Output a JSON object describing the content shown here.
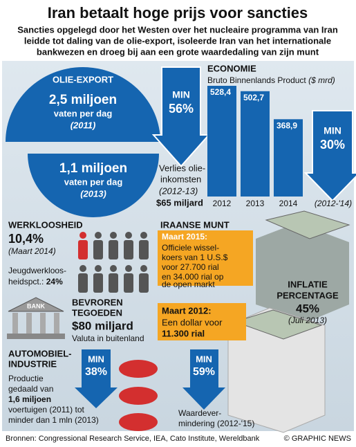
{
  "title": "Iran betaalt hoge prijs voor sancties",
  "subtitle": [
    "Sancties opgelegd door het Westen over het nucleaire programma van Iran",
    "leidde tot daling van de olie-export, isoleerde Iran van het internationale",
    "bankwezen en droeg bij aan een grote waardedaling van zijn munt"
  ],
  "oil": {
    "label": "OLIE-EXPORT",
    "before": "2,5 miljoen",
    "before_unit": "vaten per dag",
    "before_year": "(2011)",
    "after": "1,1 miljoen",
    "after_unit": "vaten per dag",
    "after_year": "(2013)",
    "arrow_label": "MIN",
    "arrow_value": "56%",
    "loss": [
      "Verlies olie-",
      "inkomsten"
    ],
    "loss_period": "(2012-13)",
    "loss_value": "$65 miljard"
  },
  "chart_data": {
    "type": "bar",
    "title": "ECONOMIE",
    "subtitle": "Bruto Binnenlands Product",
    "unit": "($ mrd)",
    "categories": [
      "2012",
      "2013",
      "2014"
    ],
    "values": [
      528.4,
      502.7,
      368.9
    ],
    "value_labels": [
      "528,4",
      "502,7",
      "368,9"
    ],
    "color": "#1565b0",
    "arrow_label": "MIN",
    "arrow_value": "30%",
    "arrow_period": "(2012-'14)"
  },
  "unemployment": {
    "label": "WERKLOOSHEID",
    "value": "10,4%",
    "date": "(Maart 2014)",
    "youth": [
      "Jeugdwerkloos-",
      "heidspct.:"
    ],
    "youth_value": "24%"
  },
  "currency": {
    "label": "IRAANSE MUNT",
    "box1_date": "Maart 2015:",
    "box1": [
      "Officiele wissel-",
      "koers van 1 U.S.$",
      "voor 27.700 rial",
      "en 34.000 rial op",
      "de open markt"
    ],
    "box2_date": "Maart 2012:",
    "box2": [
      "Een dollar voor",
      "11.300 rial"
    ]
  },
  "inflation": {
    "label": [
      "INFLATIE",
      "PERCENTAGE"
    ],
    "value": "45%",
    "date": "(Juli 2013)"
  },
  "assets": {
    "icon": "BANK",
    "label": [
      "BEVROREN",
      "TEGOEDEN"
    ],
    "value": "$80 miljard",
    "note": "Valuta in buitenland"
  },
  "auto": {
    "label": [
      "AUTOMOBIEL-",
      "INDUSTRIE"
    ],
    "text": [
      "Productie",
      "gedaald van",
      "1,6 miljoen",
      "voertuigen (2011) tot",
      "minder dan 1 mln (2013)"
    ],
    "arrow_label": "MIN",
    "arrow_value": "38%"
  },
  "devaluation": {
    "arrow_label": "MIN",
    "arrow_value": "59%",
    "text": [
      "Waardever-",
      "mindering (2012-'15)"
    ]
  },
  "footer": {
    "sources": "Bronnen: Congressional Research Service, IEA, Cato Institute, Wereldbank",
    "credit": "© GRAPHIC NEWS"
  }
}
